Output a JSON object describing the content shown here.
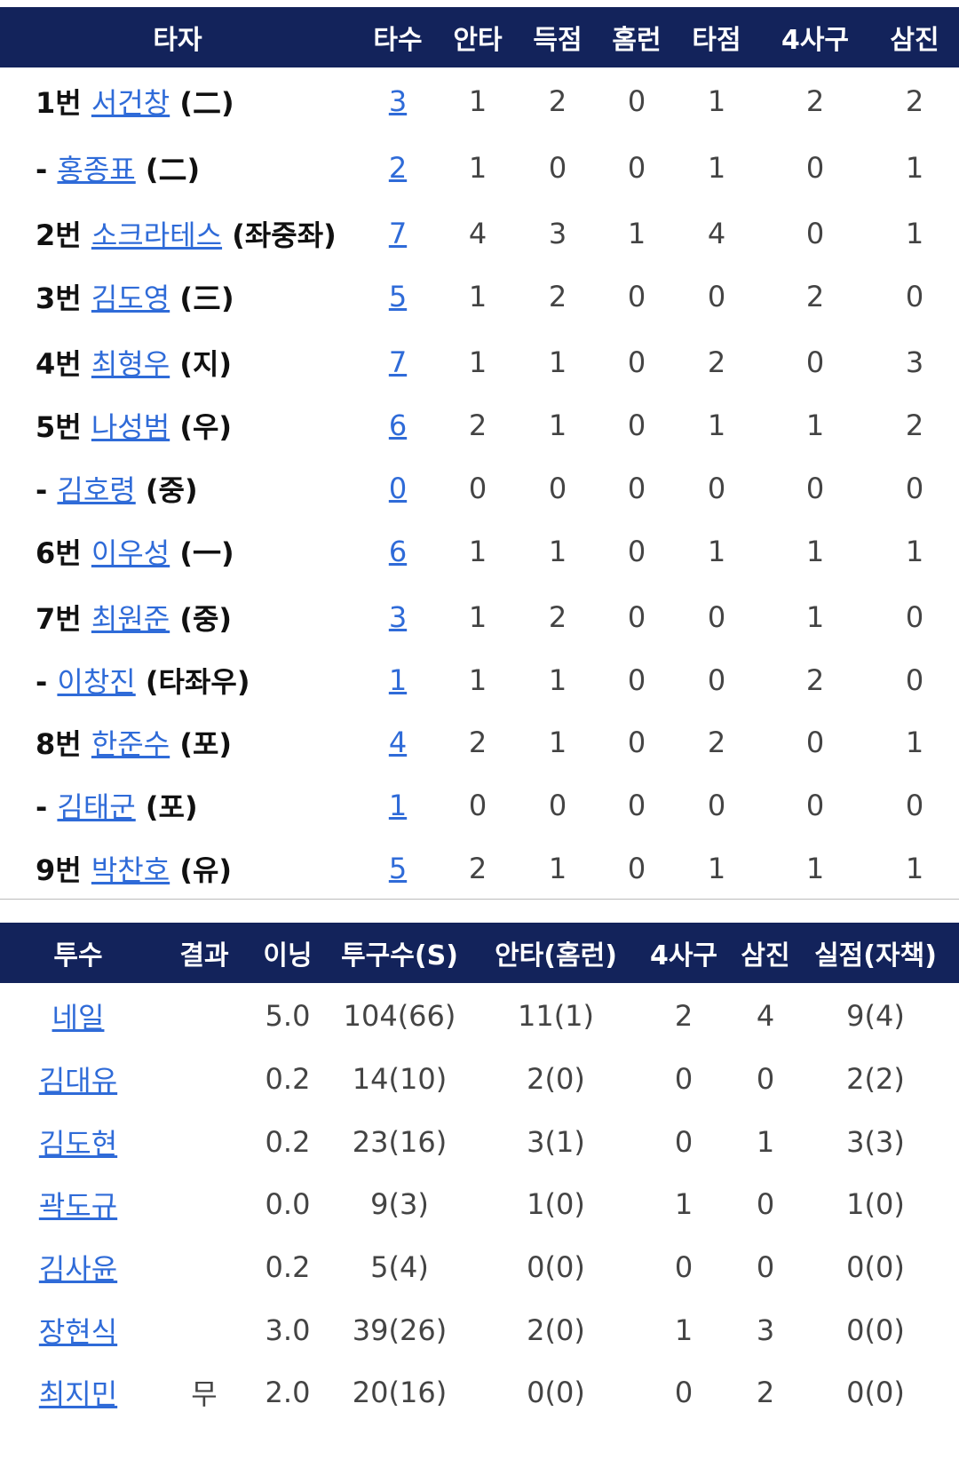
{
  "batting": {
    "headers": [
      "타자",
      "타수",
      "안타",
      "득점",
      "홈런",
      "타점",
      "4사구",
      "삼진"
    ],
    "rows": [
      {
        "order": "1번",
        "name": "서건창",
        "pos": "(二)",
        "stats": [
          3,
          1,
          2,
          0,
          1,
          2,
          2
        ]
      },
      {
        "order": "-",
        "name": "홍종표",
        "pos": "(二)",
        "stats": [
          2,
          1,
          0,
          0,
          1,
          0,
          1
        ]
      },
      {
        "order": "2번",
        "name": "소크라테스",
        "pos": "(좌중좌)",
        "stats": [
          7,
          4,
          3,
          1,
          4,
          0,
          1
        ]
      },
      {
        "order": "3번",
        "name": "김도영",
        "pos": "(三)",
        "stats": [
          5,
          1,
          2,
          0,
          0,
          2,
          0
        ]
      },
      {
        "order": "4번",
        "name": "최형우",
        "pos": "(지)",
        "stats": [
          7,
          1,
          1,
          0,
          2,
          0,
          3
        ]
      },
      {
        "order": "5번",
        "name": "나성범",
        "pos": "(우)",
        "stats": [
          6,
          2,
          1,
          0,
          1,
          1,
          2
        ]
      },
      {
        "order": "-",
        "name": "김호령",
        "pos": "(중)",
        "stats": [
          0,
          0,
          0,
          0,
          0,
          0,
          0
        ]
      },
      {
        "order": "6번",
        "name": "이우성",
        "pos": "(一)",
        "stats": [
          6,
          1,
          1,
          0,
          1,
          1,
          1
        ]
      },
      {
        "order": "7번",
        "name": "최원준",
        "pos": "(중)",
        "stats": [
          3,
          1,
          2,
          0,
          0,
          1,
          0
        ]
      },
      {
        "order": "-",
        "name": "이창진",
        "pos": "(타좌우)",
        "stats": [
          1,
          1,
          1,
          0,
          0,
          2,
          0
        ]
      },
      {
        "order": "8번",
        "name": "한준수",
        "pos": "(포)",
        "stats": [
          4,
          2,
          1,
          0,
          2,
          0,
          1
        ]
      },
      {
        "order": "-",
        "name": "김태군",
        "pos": "(포)",
        "stats": [
          1,
          0,
          0,
          0,
          0,
          0,
          0
        ]
      },
      {
        "order": "9번",
        "name": "박찬호",
        "pos": "(유)",
        "stats": [
          5,
          2,
          1,
          0,
          1,
          1,
          1
        ]
      }
    ]
  },
  "pitching": {
    "headers": [
      "투수",
      "결과",
      "이닝",
      "투구수(S)",
      "안타(홈런)",
      "4사구",
      "삼진",
      "실점(자책)"
    ],
    "rows": [
      {
        "name": "네일",
        "stats": [
          "5.0",
          "104(66)",
          "11(1)",
          2,
          4,
          "9(4)"
        ]
      },
      {
        "name": "김대유",
        "stats": [
          "0.2",
          "14(10)",
          "2(0)",
          0,
          0,
          "2(2)"
        ]
      },
      {
        "name": "김도현",
        "stats": [
          "0.2",
          "23(16)",
          "3(1)",
          0,
          1,
          "3(3)"
        ]
      },
      {
        "name": "곽도규",
        "stats": [
          "0.0",
          "9(3)",
          "1(0)",
          1,
          0,
          "1(0)"
        ]
      },
      {
        "name": "김사윤",
        "stats": [
          "0.2",
          "5(4)",
          "0(0)",
          0,
          0,
          "0(0)"
        ]
      },
      {
        "name": "장현식",
        "stats": [
          "3.0",
          "39(26)",
          "2(0)",
          1,
          3,
          "0(0)"
        ]
      },
      {
        "name": "최지민",
        "result": "무",
        "stats": [
          "2.0",
          "20(16)",
          "0(0)",
          0,
          2,
          "0(0)"
        ]
      }
    ]
  }
}
